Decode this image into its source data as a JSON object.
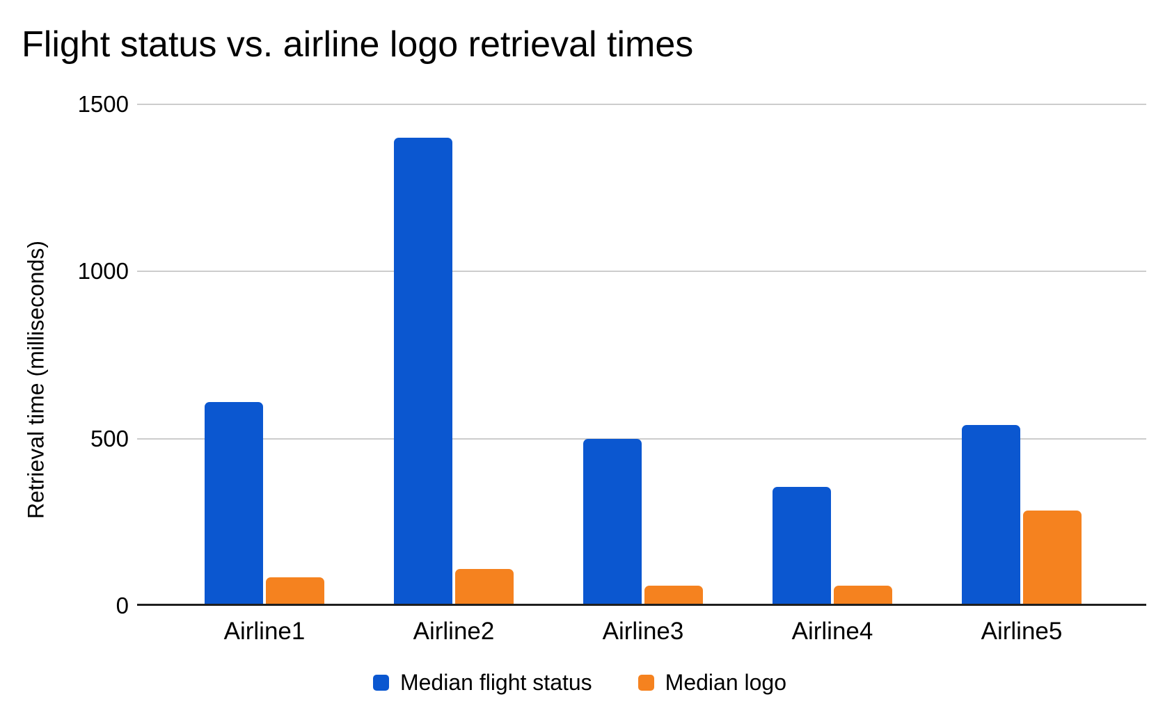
{
  "page": {
    "background": "#ffffff"
  },
  "chart_data": {
    "type": "bar",
    "title": "Flight status vs. airline logo retrieval times",
    "xlabel": "",
    "ylabel": "Retrieval time (milliseconds)",
    "categories": [
      "Airline1",
      "Airline2",
      "Airline3",
      "Airline4",
      "Airline5"
    ],
    "series": [
      {
        "name": "Median flight status",
        "color": "#0b57d0",
        "values": [
          610,
          1400,
          500,
          355,
          540
        ]
      },
      {
        "name": "Median logo",
        "color": "#f5821f",
        "values": [
          85,
          110,
          60,
          60,
          285
        ]
      }
    ],
    "ylim": [
      0,
      1500
    ],
    "yticks": [
      0,
      500,
      1000,
      1500
    ],
    "grid": true,
    "gridline_color": "#cccccc",
    "axis_line_color": "#1f1f1f",
    "text_color": "#000000",
    "legend_position": "bottom"
  }
}
